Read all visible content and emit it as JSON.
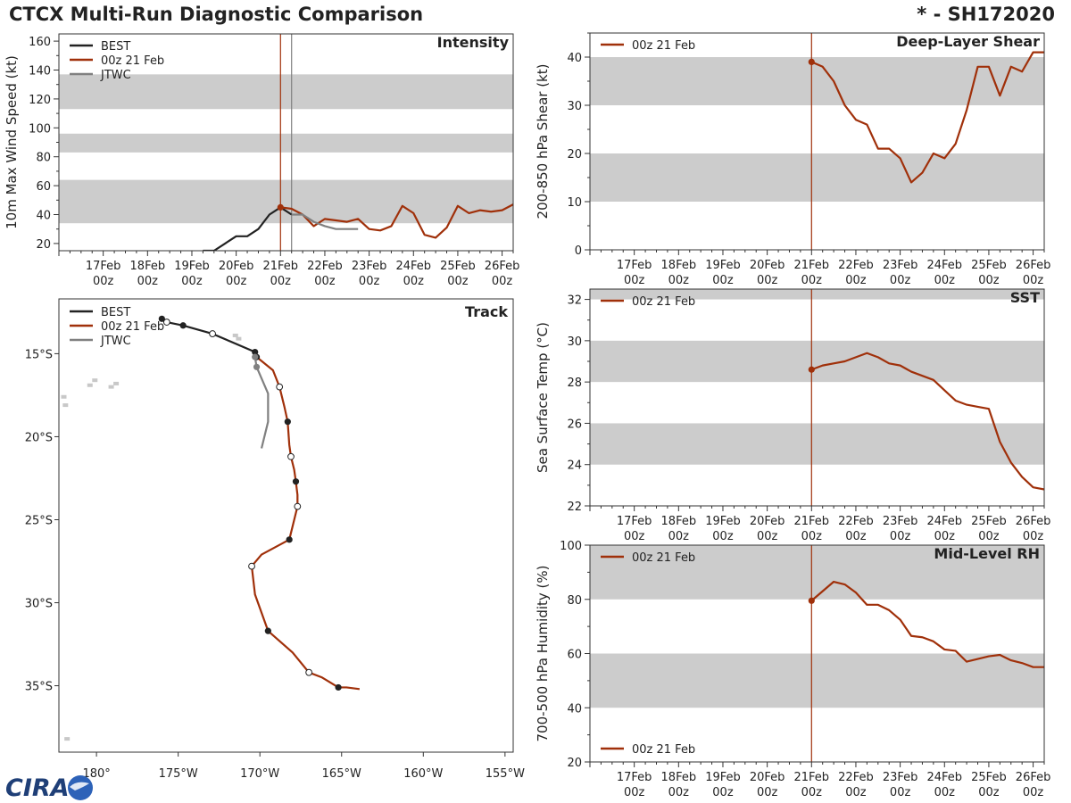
{
  "header": {
    "title": "CTCX Multi-Run Diagnostic Comparison",
    "storm": "* - SH172020"
  },
  "logo": {
    "text": "CIRA"
  },
  "colors": {
    "best": "#222222",
    "run": "#a0300a",
    "jtwc": "#808080",
    "band": "#cccccc"
  },
  "time_ticks": [
    {
      "x": 17,
      "day": "17Feb",
      "hour": "00z"
    },
    {
      "x": 18,
      "day": "18Feb",
      "hour": "00z"
    },
    {
      "x": 19,
      "day": "19Feb",
      "hour": "00z"
    },
    {
      "x": 20,
      "day": "20Feb",
      "hour": "00z"
    },
    {
      "x": 21,
      "day": "21Feb",
      "hour": "00z"
    },
    {
      "x": 22,
      "day": "22Feb",
      "hour": "00z"
    },
    {
      "x": 23,
      "day": "23Feb",
      "hour": "00z"
    },
    {
      "x": 24,
      "day": "24Feb",
      "hour": "00z"
    },
    {
      "x": 25,
      "day": "25Feb",
      "hour": "00z"
    },
    {
      "x": 26,
      "day": "26Feb",
      "hour": "00z"
    }
  ],
  "chart_data": [
    {
      "id": "intensity",
      "type": "line",
      "title": "Intensity",
      "ylabel": "10m Max Wind Speed (kt)",
      "xlabel": "",
      "xlim": [
        16.0,
        26.25
      ],
      "ylim": [
        15,
        165
      ],
      "yticks": [
        20,
        40,
        60,
        80,
        100,
        120,
        140,
        160
      ],
      "bands": [
        [
          34,
          64
        ],
        [
          83,
          96
        ],
        [
          113,
          137
        ]
      ],
      "vlines": [
        {
          "x": 21.0,
          "color": "#a0300a"
        },
        {
          "x": 21.25,
          "color": "#808080"
        }
      ],
      "legend": [
        "BEST",
        "00z 21 Feb",
        "JTWC"
      ],
      "series": [
        {
          "name": "BEST",
          "color": "#222222",
          "marker": false,
          "x": [
            19.25,
            19.5,
            19.75,
            20.0,
            20.25,
            20.5,
            20.75,
            21.0,
            21.25
          ],
          "y": [
            15,
            15,
            20,
            25,
            25,
            30,
            40,
            45,
            40
          ]
        },
        {
          "name": "00z 21 Feb",
          "color": "#a0300a",
          "marker": true,
          "x": [
            21.0,
            21.25,
            21.5,
            21.75,
            22.0,
            22.25,
            22.5,
            22.75,
            23.0,
            23.25,
            23.5,
            23.75,
            24.0,
            24.25,
            24.5,
            24.75,
            25.0,
            25.25,
            25.5,
            25.75,
            26.0,
            26.25
          ],
          "y": [
            45,
            44,
            40,
            32,
            37,
            36,
            35,
            37,
            30,
            29,
            32,
            46,
            41,
            26,
            24,
            31,
            46,
            41,
            43,
            42,
            43,
            47
          ]
        },
        {
          "name": "JTWC",
          "color": "#808080",
          "marker": false,
          "x": [
            21.25,
            21.5,
            21.75,
            22.0,
            22.25,
            22.5,
            22.75
          ],
          "y": [
            40,
            40,
            35,
            32,
            30,
            30,
            30
          ]
        }
      ]
    },
    {
      "id": "shear",
      "type": "line",
      "title": "Deep-Layer Shear",
      "ylabel": "200-850 hPa Shear (kt)",
      "xlabel": "",
      "xlim": [
        16.0,
        26.25
      ],
      "ylim": [
        0,
        45
      ],
      "yticks": [
        0,
        10,
        20,
        30,
        40
      ],
      "bands": [
        [
          10,
          20
        ],
        [
          30,
          40
        ]
      ],
      "vlines": [
        {
          "x": 21.0,
          "color": "#a0300a"
        }
      ],
      "legend": [
        "00z 21 Feb"
      ],
      "series": [
        {
          "name": "00z 21 Feb",
          "color": "#a0300a",
          "marker": true,
          "x": [
            21.0,
            21.25,
            21.5,
            21.75,
            22.0,
            22.25,
            22.5,
            22.75,
            23.0,
            23.25,
            23.5,
            23.75,
            24.0,
            24.25,
            24.5,
            24.75,
            25.0,
            25.25,
            25.5,
            25.75,
            26.0,
            26.25
          ],
          "y": [
            39,
            38,
            35,
            30,
            27,
            26,
            21,
            21,
            19,
            14,
            16,
            20,
            19,
            22,
            29,
            38,
            38,
            32,
            38,
            37,
            41,
            41
          ]
        }
      ]
    },
    {
      "id": "sst",
      "type": "line",
      "title": "SST",
      "ylabel": "Sea Surface Temp (°C)",
      "xlabel": "",
      "xlim": [
        16.0,
        26.25
      ],
      "ylim": [
        22,
        32.5
      ],
      "yticks": [
        22,
        24,
        26,
        28,
        30,
        32
      ],
      "bands": [
        [
          24,
          26
        ],
        [
          28,
          30
        ],
        [
          32,
          34
        ]
      ],
      "vlines": [
        {
          "x": 21.0,
          "color": "#a0300a"
        }
      ],
      "legend": [
        "00z 21 Feb"
      ],
      "series": [
        {
          "name": "00z 21 Feb",
          "color": "#a0300a",
          "marker": true,
          "x": [
            21.0,
            21.25,
            21.5,
            21.75,
            22.0,
            22.25,
            22.5,
            22.75,
            23.0,
            23.25,
            23.5,
            23.75,
            24.0,
            24.25,
            24.5,
            24.75,
            25.0,
            25.25,
            25.5,
            25.75,
            26.0,
            26.25
          ],
          "y": [
            28.6,
            28.8,
            28.9,
            29.0,
            29.2,
            29.4,
            29.2,
            28.9,
            28.8,
            28.5,
            28.3,
            28.1,
            27.6,
            27.1,
            26.9,
            26.8,
            26.7,
            25.1,
            24.1,
            23.4,
            22.9,
            22.8
          ]
        }
      ]
    },
    {
      "id": "rh",
      "type": "line",
      "title": "Mid-Level RH",
      "ylabel": "700-500 hPa Humidity (%)",
      "xlabel": "",
      "xlim": [
        16.0,
        26.25
      ],
      "ylim": [
        20,
        100
      ],
      "yticks": [
        20,
        40,
        60,
        80,
        100
      ],
      "bands": [
        [
          40,
          60
        ],
        [
          80,
          100
        ]
      ],
      "vlines": [
        {
          "x": 21.0,
          "color": "#a0300a"
        }
      ],
      "legend": [
        "00z 21 Feb",
        "00z 21 Feb"
      ],
      "series": [
        {
          "name": "00z 21 Feb",
          "color": "#a0300a",
          "marker": true,
          "x": [
            21.0,
            21.25,
            21.5,
            21.75,
            22.0,
            22.25,
            22.5,
            22.75,
            23.0,
            23.25,
            23.5,
            23.75,
            24.0,
            24.25,
            24.5,
            24.75,
            25.0,
            25.25,
            25.5,
            25.75,
            26.0,
            26.25
          ],
          "y": [
            79.5,
            83,
            86.5,
            85.5,
            82.5,
            78,
            78,
            76,
            72.5,
            66.5,
            66,
            64.5,
            61.5,
            61,
            57,
            58,
            59,
            59.5,
            57.5,
            56.5,
            55,
            55
          ]
        }
      ]
    },
    {
      "id": "track",
      "type": "scatter",
      "title": "Track",
      "xlabel": "",
      "ylabel": "",
      "xlim": [
        177.7,
        205.5
      ],
      "ylim": [
        -39.0,
        -11.7
      ],
      "xticks": [
        {
          "v": 180,
          "label": "180°"
        },
        {
          "v": 185,
          "label": "175°W"
        },
        {
          "v": 190,
          "label": "170°W"
        },
        {
          "v": 195,
          "label": "165°W"
        },
        {
          "v": 200,
          "label": "160°W"
        },
        {
          "v": 205,
          "label": "155°W"
        }
      ],
      "yticks": [
        {
          "v": -15,
          "label": "15°S"
        },
        {
          "v": -20,
          "label": "20°S"
        },
        {
          "v": -25,
          "label": "25°S"
        },
        {
          "v": -30,
          "label": "30°S"
        },
        {
          "v": -35,
          "label": "35°S"
        }
      ],
      "legend": [
        "BEST",
        "00z 21 Feb",
        "JTWC"
      ],
      "series": [
        {
          "name": "BEST",
          "color": "#222222",
          "lon": [
            184.0,
            184.3,
            185.3,
            187.1,
            189.7,
            189.7
          ],
          "lat": [
            -12.9,
            -13.1,
            -13.3,
            -13.8,
            -14.9,
            -15.1
          ],
          "markers": [
            "filled",
            "open",
            "filled",
            "open",
            "filled",
            "none"
          ]
        },
        {
          "name": "00z 21 Feb",
          "color": "#a0300a",
          "lon": [
            189.8,
            190.8,
            191.2,
            191.5,
            191.7,
            191.8,
            191.9,
            192.1,
            192.2,
            192.3,
            192.3,
            191.8,
            190.1,
            189.5,
            189.7,
            190.5,
            192.0,
            193.0,
            193.8,
            194.8,
            195.3,
            196.1
          ],
          "lat": [
            -15.2,
            -16.0,
            -17.0,
            -18.2,
            -19.1,
            -20.5,
            -21.2,
            -22.0,
            -22.7,
            -23.5,
            -24.2,
            -26.2,
            -27.1,
            -27.8,
            -29.5,
            -31.7,
            -33.0,
            -34.2,
            -34.5,
            -35.1,
            -35.1,
            -35.2
          ],
          "markers": [
            "filled",
            "none",
            "open",
            "none",
            "filled",
            "none",
            "open",
            "none",
            "filled",
            "none",
            "open",
            "filled",
            "none",
            "open",
            "none",
            "filled",
            "none",
            "open",
            "none",
            "filled",
            "none",
            "none"
          ]
        },
        {
          "name": "JTWC",
          "color": "#808080",
          "lon": [
            189.7,
            189.8,
            190.5,
            190.5,
            190.5,
            190.1
          ],
          "lat": [
            -15.2,
            -15.8,
            -17.4,
            -18.0,
            -19.1,
            -20.7
          ],
          "markers": [
            "filled",
            "filled",
            "none",
            "none",
            "none",
            "none"
          ]
        }
      ],
      "land": [
        {
          "lon": 188.5,
          "lat": -13.9
        },
        {
          "lon": 188.7,
          "lat": -14.1
        },
        {
          "lon": 179.6,
          "lat": -16.9
        },
        {
          "lon": 179.9,
          "lat": -16.6
        },
        {
          "lon": 181.2,
          "lat": -16.8
        },
        {
          "lon": 180.9,
          "lat": -17.0
        },
        {
          "lon": 178.0,
          "lat": -17.6
        },
        {
          "lon": 178.1,
          "lat": -18.1
        },
        {
          "lon": 178.2,
          "lat": -38.2
        }
      ]
    }
  ]
}
